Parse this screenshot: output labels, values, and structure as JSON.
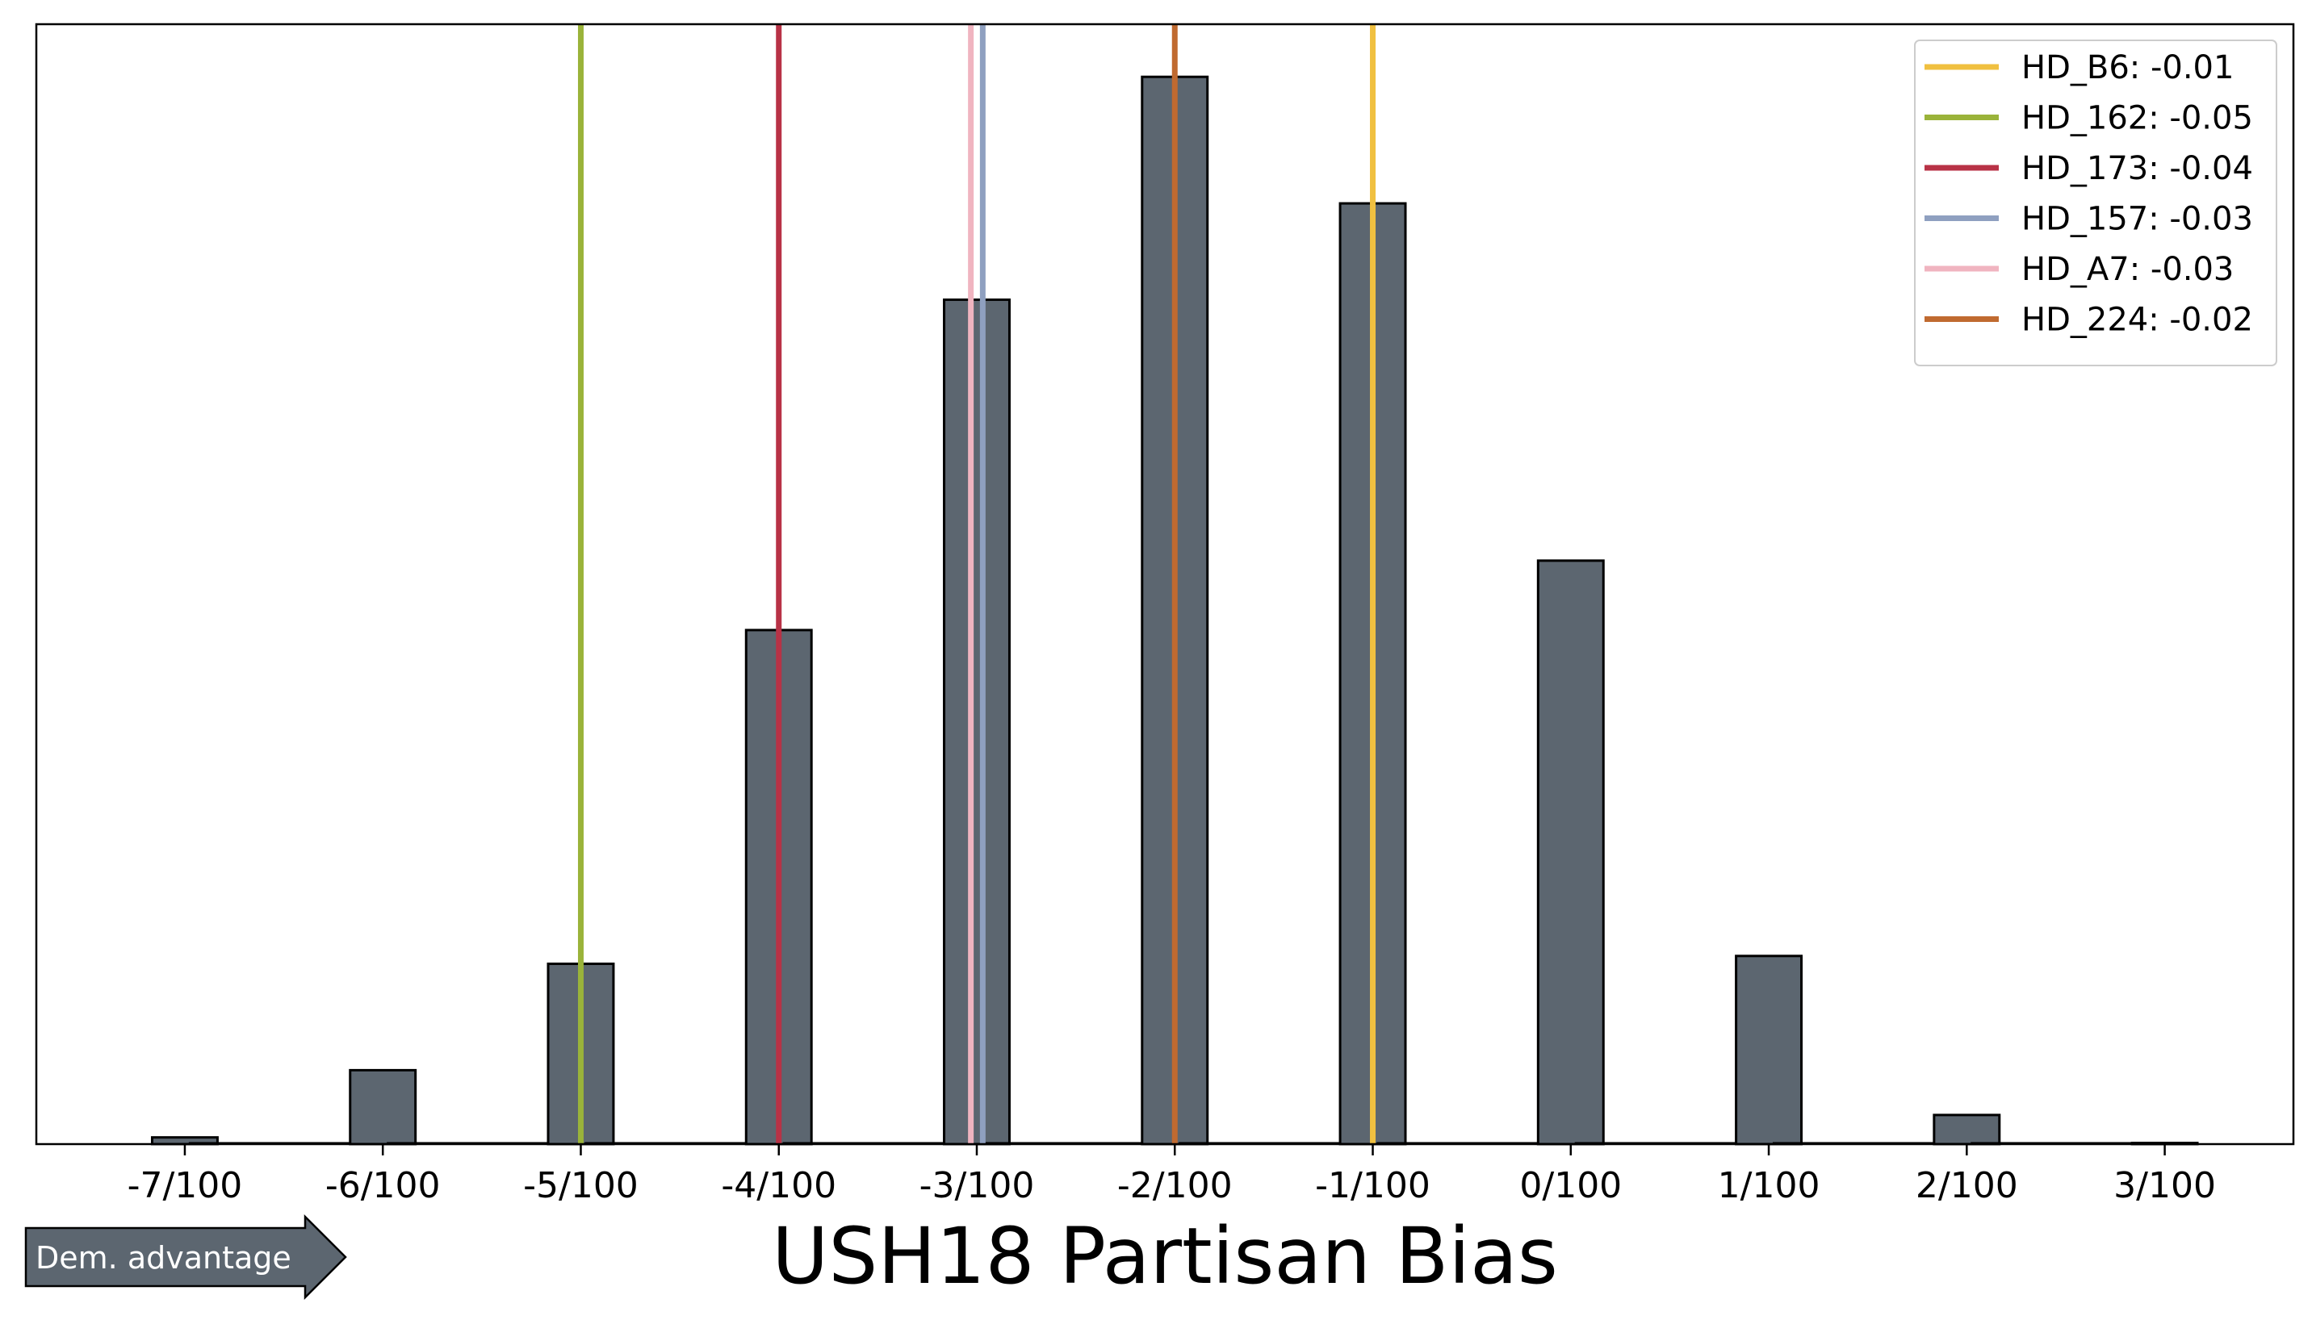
{
  "chart_data": {
    "type": "bar",
    "title": "USH18 Partisan Bias",
    "xlabel": "",
    "ylabel": "",
    "xlim": [
      -0.0775,
      0.0365
    ],
    "ylim": [
      0,
      100
    ],
    "bar_width": 0.0033,
    "bar_color": "#5c6670",
    "bars": [
      {
        "x": -0.07,
        "y": 0.6
      },
      {
        "x": -0.06,
        "y": 6.6
      },
      {
        "x": -0.05,
        "y": 16.1
      },
      {
        "x": -0.04,
        "y": 45.9
      },
      {
        "x": -0.03,
        "y": 75.4
      },
      {
        "x": -0.02,
        "y": 95.3
      },
      {
        "x": -0.01,
        "y": 84.0
      },
      {
        "x": 0.0,
        "y": 52.1
      },
      {
        "x": 0.01,
        "y": 16.8
      },
      {
        "x": 0.02,
        "y": 2.6
      },
      {
        "x": 0.03,
        "y": 0.1
      }
    ],
    "x_ticks": [
      {
        "value": -0.07,
        "label": "-7/100"
      },
      {
        "value": -0.06,
        "label": "-6/100"
      },
      {
        "value": -0.05,
        "label": "-5/100"
      },
      {
        "value": -0.04,
        "label": "-4/100"
      },
      {
        "value": -0.03,
        "label": "-3/100"
      },
      {
        "value": -0.02,
        "label": "-2/100"
      },
      {
        "value": -0.01,
        "label": "-1/100"
      },
      {
        "value": 0.0,
        "label": "0/100"
      },
      {
        "value": 0.01,
        "label": "1/100"
      },
      {
        "value": 0.02,
        "label": "2/100"
      },
      {
        "value": 0.03,
        "label": "3/100"
      }
    ],
    "series": [
      {
        "name": "HD_B6: -0.01",
        "x": -0.01,
        "color": "#f0c040"
      },
      {
        "name": "HD_162: -0.05",
        "x": -0.05,
        "color": "#9ab33a"
      },
      {
        "name": "HD_173: -0.04",
        "x": -0.04,
        "color": "#b83246"
      },
      {
        "name": "HD_157: -0.03",
        "x": -0.0297,
        "color": "#8fa0c0"
      },
      {
        "name": "HD_A7: -0.03",
        "x": -0.0303,
        "color": "#f0b4c0"
      },
      {
        "name": "HD_224: -0.02",
        "x": -0.02,
        "color": "#c06a30"
      }
    ],
    "legend_position": "top-right",
    "grid": false,
    "annotation": "Dem. advantage"
  }
}
